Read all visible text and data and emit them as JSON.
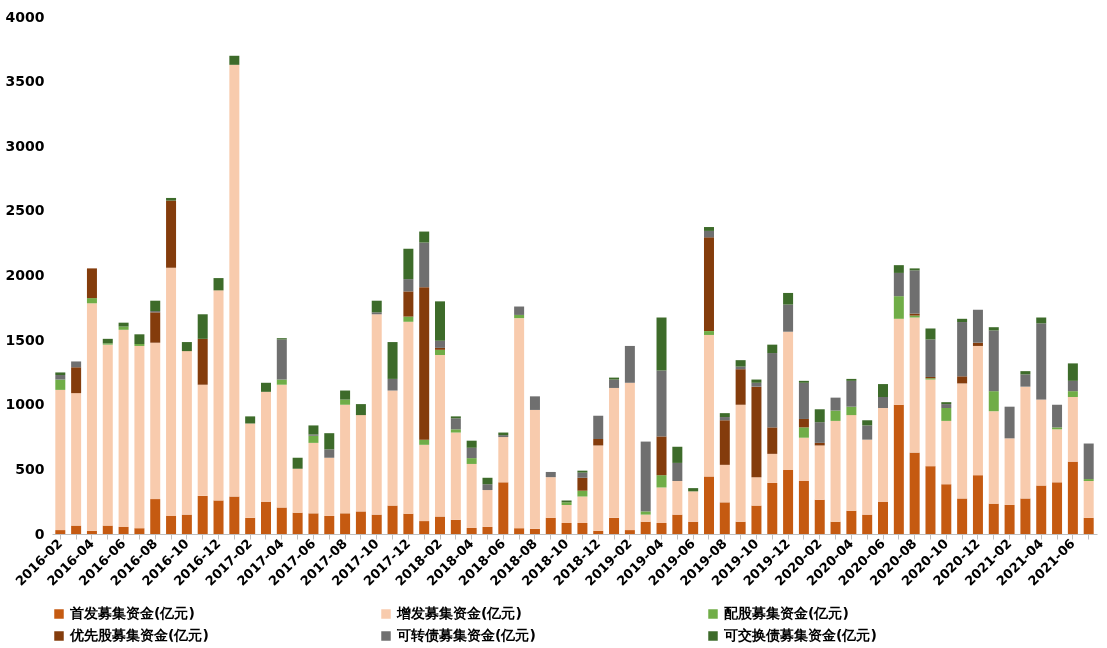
{
  "chart_data": {
    "type": "bar",
    "stacked": true,
    "legend": "bottom",
    "grid": false,
    "categories": [
      "2016-02",
      null,
      "2016-04",
      null,
      "2016-06",
      null,
      "2016-08",
      null,
      "2016-10",
      null,
      "2016-12",
      null,
      "2017-02",
      null,
      "2017-04",
      null,
      "2017-06",
      null,
      "2017-08",
      null,
      "2017-10",
      null,
      "2017-12",
      null,
      "2018-02",
      null,
      "2018-04",
      null,
      "2018-06",
      null,
      "2018-08",
      null,
      "2018-10",
      null,
      "2018-12",
      null,
      "2019-02",
      null,
      "2019-04",
      null,
      "2019-06",
      null,
      "2019-08",
      null,
      "2019-10",
      null,
      "2019-12",
      null,
      "2020-02",
      null,
      "2020-04",
      null,
      "2020-06",
      null,
      "2020-08",
      null,
      "2020-10",
      null,
      "2020-12",
      null,
      "2021-02",
      null,
      "2021-04",
      null,
      "2021-06",
      null
    ],
    "ylim": [
      0,
      4000
    ],
    "yticks": [
      0,
      500,
      1000,
      1500,
      2000,
      2500,
      3000,
      3500,
      4000
    ],
    "series": [
      {
        "name": "首发募集资金(亿元)",
        "color": "#c55a11",
        "values": [
          30,
          65,
          25,
          65,
          55,
          45,
          270,
          140,
          150,
          295,
          260,
          290,
          125,
          250,
          205,
          165,
          160,
          140,
          160,
          175,
          150,
          220,
          157,
          100,
          135,
          110,
          47,
          55,
          400,
          45,
          40,
          125,
          85,
          85,
          25,
          125,
          30,
          95,
          85,
          150,
          95,
          445,
          245,
          95,
          220,
          395,
          495,
          410,
          265,
          95,
          180,
          150,
          250,
          1000,
          630,
          525,
          385,
          275,
          455,
          235,
          225,
          275,
          375,
          400,
          560,
          125
        ]
      },
      {
        "name": "增发募集资金(亿元)",
        "color": "#f8cbad",
        "values": [
          1085,
          1025,
          1760,
          1400,
          1525,
          1410,
          1210,
          1920,
          1265,
          860,
          1625,
          3340,
          730,
          850,
          950,
          340,
          545,
          450,
          840,
          745,
          1550,
          890,
          1485,
          590,
          1250,
          675,
          495,
          285,
          350,
          1625,
          920,
          315,
          140,
          205,
          660,
          1005,
          1140,
          55,
          275,
          260,
          235,
          1095,
          290,
          905,
          220,
          225,
          1070,
          335,
          420,
          780,
          740,
          580,
          725,
          665,
          1045,
          670,
          490,
          890,
          1000,
          715,
          515,
          865,
          665,
          410,
          500,
          285
        ]
      },
      {
        "name": "配股募集资金(亿元)",
        "color": "#70ad47",
        "values": [
          80,
          0,
          40,
          10,
          25,
          15,
          0,
          0,
          0,
          0,
          0,
          0,
          0,
          0,
          40,
          0,
          55,
          0,
          40,
          0,
          0,
          0,
          40,
          40,
          40,
          25,
          45,
          0,
          0,
          25,
          0,
          0,
          20,
          45,
          0,
          0,
          0,
          25,
          95,
          0,
          0,
          30,
          0,
          0,
          0,
          0,
          0,
          80,
          0,
          80,
          65,
          0,
          0,
          175,
          15,
          10,
          100,
          0,
          0,
          155,
          0,
          0,
          0,
          15,
          45,
          15
        ]
      },
      {
        "name": "优先股募集资金(亿元)",
        "color": "#843c0c",
        "values": [
          0,
          200,
          230,
          0,
          0,
          0,
          235,
          520,
          0,
          355,
          0,
          0,
          0,
          0,
          0,
          0,
          0,
          0,
          0,
          0,
          0,
          0,
          195,
          1180,
          15,
          0,
          0,
          0,
          0,
          0,
          0,
          0,
          0,
          100,
          50,
          0,
          0,
          0,
          300,
          0,
          0,
          725,
          345,
          275,
          700,
          205,
          0,
          65,
          20,
          0,
          0,
          0,
          0,
          0,
          15,
          10,
          0,
          55,
          25,
          0,
          0,
          0,
          0,
          0,
          0,
          0
        ]
      },
      {
        "name": "可转债募集资金(亿元)",
        "color": "#6f6f6f",
        "values": [
          35,
          45,
          null,
          0,
          0,
          0,
          10,
          0,
          0,
          0,
          0,
          0,
          0,
          0,
          310,
          0,
          10,
          65,
          0,
          0,
          15,
          90,
          95,
          345,
          55,
          85,
          80,
          45,
          15,
          65,
          105,
          40,
          0,
          40,
          180,
          65,
          285,
          540,
          510,
          140,
          0,
          50,
          25,
          20,
          30,
          575,
          210,
          280,
          160,
          100,
          200,
          110,
          85,
          180,
          335,
          290,
          30,
          420,
          255,
          470,
          245,
          95,
          590,
          175,
          80,
          275
        ]
      },
      {
        "name": "可交换债募集资金(亿元)",
        "color": "#3d6b2a",
        "values": [
          20,
          0,
          0,
          35,
          30,
          75,
          80,
          20,
          70,
          190,
          95,
          70,
          55,
          70,
          10,
          85,
          70,
          125,
          70,
          85,
          90,
          285,
          235,
          85,
          305,
          15,
          55,
          50,
          20,
          0,
          null,
          0,
          15,
          15,
          0,
          15,
          0,
          0,
          410,
          125,
          25,
          30,
          30,
          50,
          25,
          65,
          90,
          15,
          100,
          0,
          15,
          40,
          100,
          60,
          15,
          85,
          15,
          25,
          0,
          25,
          0,
          25,
          45,
          0,
          135,
          0
        ]
      }
    ]
  }
}
